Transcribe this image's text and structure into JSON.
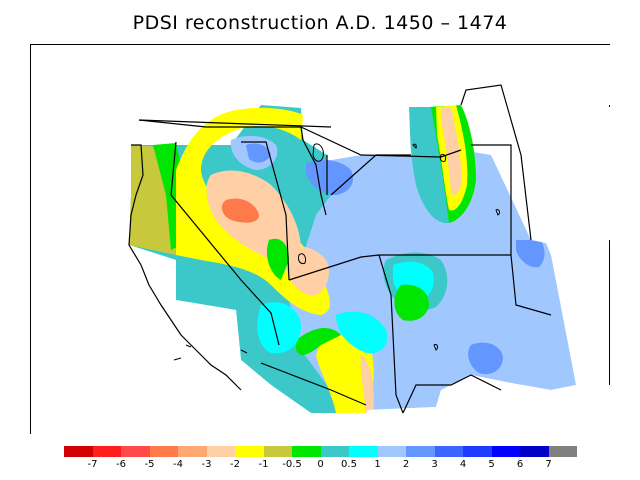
{
  "title": "PDSI reconstruction A.D. 1450 – 1474",
  "colorbar": {
    "colors": [
      "#d20000",
      "#ff1e1e",
      "#ff4a4a",
      "#ff7a4a",
      "#ffa874",
      "#ffd0a6",
      "#ffff00",
      "#c8c83c",
      "#00e600",
      "#3cc8c8",
      "#00ffff",
      "#a0c8ff",
      "#6496ff",
      "#3c64ff",
      "#1e3cff",
      "#0000ff",
      "#0000c8",
      "#808080"
    ],
    "labels": [
      "-7",
      "-6",
      "-5",
      "-4",
      "-3",
      "-2",
      "-1",
      "-0.5",
      "0",
      "0.5",
      "1",
      "2",
      "3",
      "4",
      "5",
      "6",
      "7"
    ]
  }
}
